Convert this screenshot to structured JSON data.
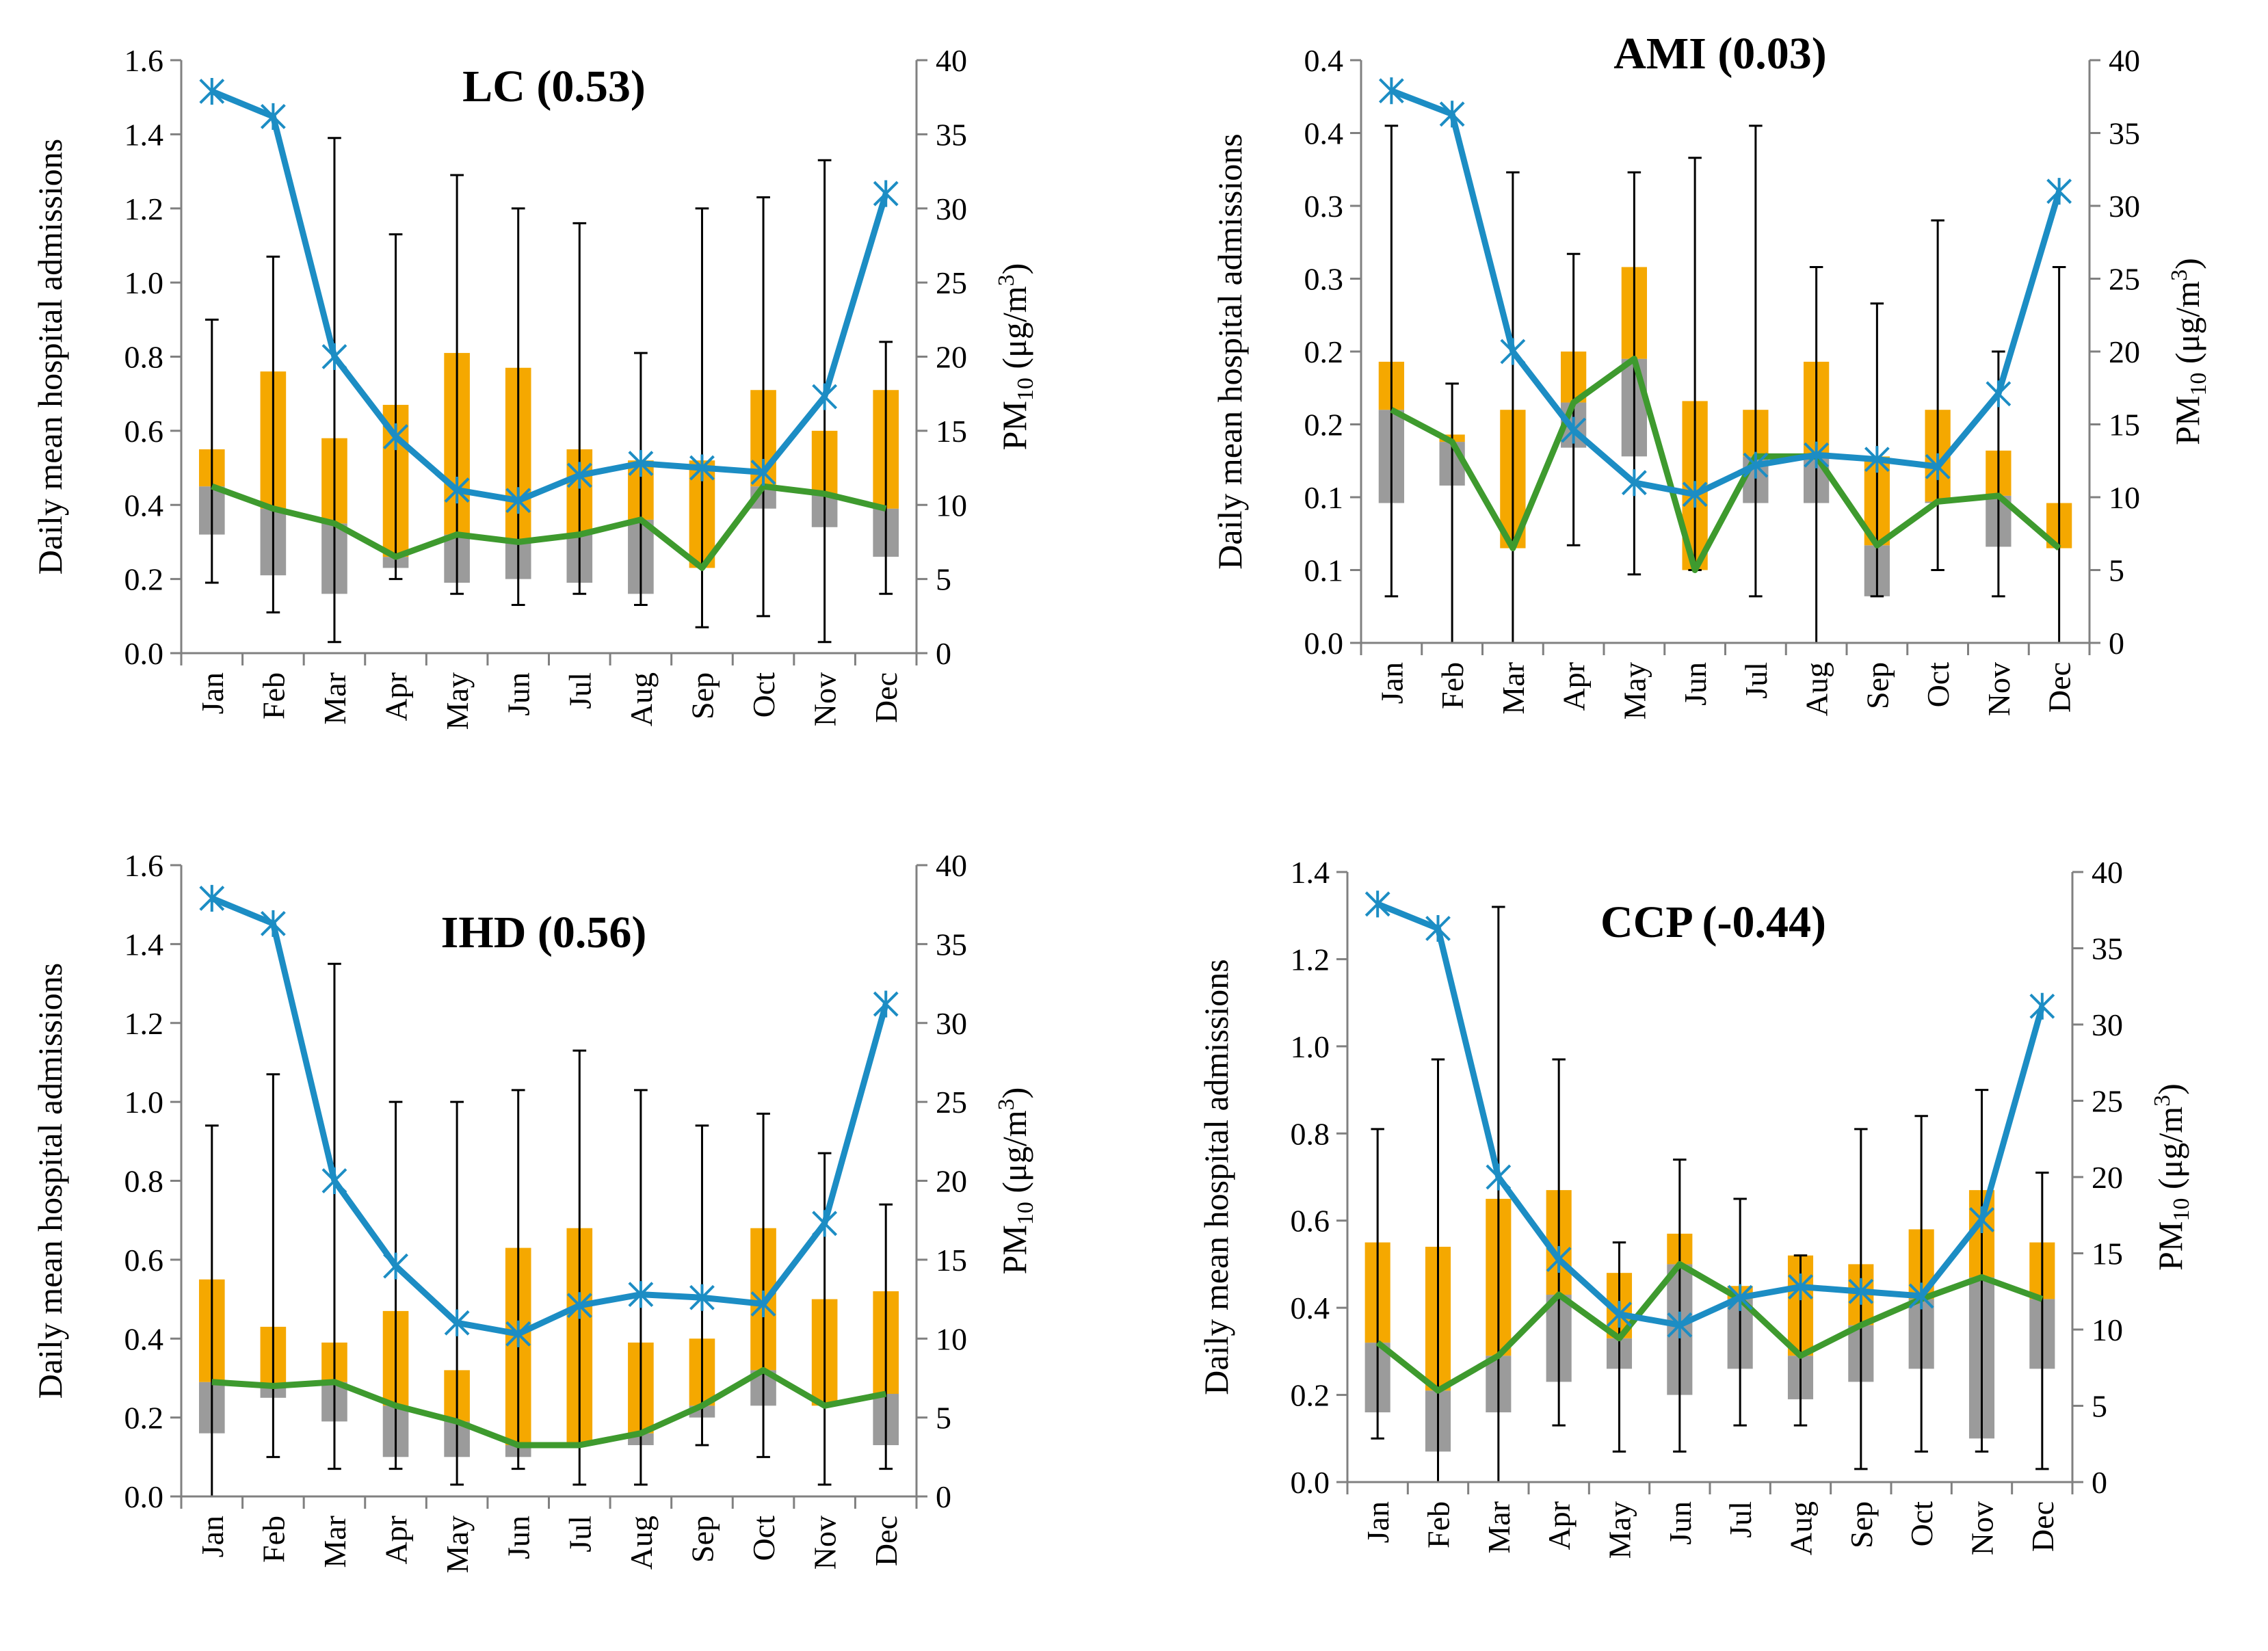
{
  "colors": {
    "pm10_line": "#1C8DC4",
    "admission_line": "#3E9A2E",
    "box_upper": "#F5A800",
    "box_lower": "#9B9B9B",
    "whisker": "#000000",
    "axis": "#808080"
  },
  "chart_data": [
    {
      "type": "boxplot-line",
      "title": "LC (0.53)",
      "ylabel": "Daily mean hospital admissions",
      "y2label": {
        "main": "PM",
        "sub": "10",
        "unit": " (μg/m",
        "sup": "3",
        "close": ")"
      },
      "ylim": [
        0,
        1.6
      ],
      "yticks": [
        "0.0",
        "0.2",
        "0.4",
        "0.6",
        "0.8",
        "1.0",
        "1.2",
        "1.4",
        "1.6"
      ],
      "y2lim": [
        0,
        40
      ],
      "y2ticks": [
        "0",
        "5",
        "10",
        "15",
        "20",
        "25",
        "30",
        "35",
        "40"
      ],
      "categories": [
        "Jan",
        "Feb",
        "Mar",
        "Apr",
        "May",
        "Jun",
        "Jul",
        "Aug",
        "Sep",
        "Oct",
        "Nov",
        "Dec"
      ],
      "whisker_low": [
        0.19,
        0.11,
        0.03,
        0.2,
        0.16,
        0.13,
        0.16,
        0.13,
        0.07,
        0.1,
        0.03,
        0.16
      ],
      "q1": [
        0.32,
        0.21,
        0.16,
        0.23,
        0.19,
        0.2,
        0.19,
        0.16,
        0.23,
        0.39,
        0.34,
        0.26
      ],
      "median": [
        0.45,
        0.39,
        0.35,
        0.26,
        0.32,
        0.3,
        0.32,
        0.36,
        0.23,
        0.45,
        0.43,
        0.39
      ],
      "q3": [
        0.55,
        0.76,
        0.58,
        0.67,
        0.81,
        0.77,
        0.55,
        0.52,
        0.52,
        0.71,
        0.6,
        0.71
      ],
      "whisker_high": [
        0.9,
        1.07,
        1.39,
        1.13,
        1.29,
        1.2,
        1.16,
        0.81,
        1.2,
        1.23,
        1.33,
        0.84
      ],
      "pm10": [
        37.9,
        36.2,
        20,
        14.6,
        11,
        10.3,
        12,
        12.8,
        12.5,
        12.2,
        17.3,
        31
      ]
    },
    {
      "type": "boxplot-line",
      "title": "AMI (0.03)",
      "ylabel": "Daily mean hospital admissions",
      "y2label": {
        "main": "PM",
        "sub": "10",
        "unit": " (μg/m",
        "sup": "3",
        "close": ")"
      },
      "ylim": [
        0,
        0.4
      ],
      "yticks": [
        "0.0",
        "0.1",
        "0.1",
        "0.2",
        "0.2",
        "0.3",
        "0.3",
        "0.4",
        "0.4"
      ],
      "y2lim": [
        0,
        40
      ],
      "y2ticks": [
        "0",
        "5",
        "10",
        "15",
        "20",
        "25",
        "30",
        "35",
        "40"
      ],
      "categories": [
        "Jan",
        "Feb",
        "Mar",
        "Apr",
        "May",
        "Jun",
        "Jul",
        "Aug",
        "Sep",
        "Oct",
        "Nov",
        "Dec"
      ],
      "whisker_low": [
        0.032,
        0,
        0,
        0.067,
        0.047,
        0.05,
        0.032,
        0,
        0.032,
        0.05,
        0.032,
        0
      ],
      "q1": [
        0.096,
        0.108,
        0.065,
        0.134,
        0.128,
        0.05,
        0.096,
        0.096,
        0.032,
        0.096,
        0.066,
        0.065
      ],
      "median": [
        0.16,
        0.138,
        0.065,
        0.165,
        0.195,
        0.05,
        0.128,
        0.128,
        0.067,
        0.097,
        0.101,
        0.065
      ],
      "q3": [
        0.193,
        0.143,
        0.16,
        0.2,
        0.258,
        0.166,
        0.16,
        0.193,
        0.128,
        0.16,
        0.132,
        0.096
      ],
      "whisker_high": [
        0.355,
        0.178,
        0.323,
        0.267,
        0.323,
        0.333,
        0.355,
        0.258,
        0.233,
        0.29,
        0.2,
        0.258
      ],
      "pm10": [
        37.9,
        36.3,
        20,
        14.6,
        11,
        10.2,
        12.2,
        12.9,
        12.6,
        12.1,
        17.1,
        31
      ]
    },
    {
      "type": "boxplot-line",
      "title": "IHD (0.56)",
      "ylabel": "Daily mean hospital admissions",
      "y2label": {
        "main": "PM",
        "sub": "10",
        "unit": " (μg/m",
        "sup": "3",
        "close": ")"
      },
      "ylim": [
        0,
        1.6
      ],
      "yticks": [
        "0.0",
        "0.2",
        "0.4",
        "0.6",
        "0.8",
        "1.0",
        "1.2",
        "1.4",
        "1.6"
      ],
      "y2lim": [
        0,
        40
      ],
      "y2ticks": [
        "0",
        "5",
        "10",
        "15",
        "20",
        "25",
        "30",
        "35",
        "40"
      ],
      "categories": [
        "Jan",
        "Feb",
        "Mar",
        "Apr",
        "May",
        "Jun",
        "Jul",
        "Aug",
        "Sep",
        "Oct",
        "Nov",
        "Dec"
      ],
      "whisker_low": [
        0,
        0.1,
        0.07,
        0.07,
        0.03,
        0.07,
        0.03,
        0.03,
        0.13,
        0.1,
        0.03,
        0.07
      ],
      "q1": [
        0.16,
        0.25,
        0.19,
        0.1,
        0.1,
        0.1,
        0.13,
        0.13,
        0.2,
        0.23,
        0.23,
        0.13
      ],
      "median": [
        0.29,
        0.28,
        0.29,
        0.23,
        0.19,
        0.13,
        0.13,
        0.16,
        0.23,
        0.32,
        0.23,
        0.26
      ],
      "q3": [
        0.55,
        0.43,
        0.39,
        0.47,
        0.32,
        0.63,
        0.68,
        0.39,
        0.4,
        0.68,
        0.5,
        0.52
      ],
      "whisker_high": [
        0.94,
        1.07,
        1.35,
        1.0,
        1.0,
        1.03,
        1.13,
        1.03,
        0.94,
        0.97,
        0.87,
        0.74
      ],
      "pm10": [
        37.9,
        36.3,
        20,
        14.6,
        11,
        10.3,
        12.1,
        12.8,
        12.6,
        12.2,
        17.3,
        31.2
      ]
    },
    {
      "type": "boxplot-line",
      "title": "CCP (-0.44)",
      "ylabel": "Daily mean hospital admissions",
      "y2label": {
        "main": "PM",
        "sub": "10",
        "unit": " (μg/m",
        "sup": "3",
        "close": ")"
      },
      "ylim": [
        0,
        1.4
      ],
      "yticks": [
        "0.0",
        "0.2",
        "0.4",
        "0.6",
        "0.8",
        "1.0",
        "1.2",
        "1.4"
      ],
      "y2lim": [
        0,
        40
      ],
      "y2ticks": [
        "0",
        "5",
        "10",
        "15",
        "20",
        "25",
        "30",
        "35",
        "40"
      ],
      "categories": [
        "Jan",
        "Feb",
        "Mar",
        "Apr",
        "May",
        "Jun",
        "Jul",
        "Aug",
        "Sep",
        "Oct",
        "Nov",
        "Dec"
      ],
      "whisker_low": [
        0.1,
        0,
        0,
        0.13,
        0.07,
        0.07,
        0.13,
        0.13,
        0.03,
        0.07,
        0.07,
        0.03
      ],
      "q1": [
        0.16,
        0.07,
        0.16,
        0.23,
        0.26,
        0.2,
        0.26,
        0.19,
        0.23,
        0.26,
        0.1,
        0.26
      ],
      "median": [
        0.32,
        0.21,
        0.29,
        0.43,
        0.33,
        0.5,
        0.42,
        0.29,
        0.36,
        0.42,
        0.47,
        0.42
      ],
      "q3": [
        0.55,
        0.54,
        0.65,
        0.67,
        0.48,
        0.57,
        0.45,
        0.52,
        0.5,
        0.58,
        0.67,
        0.55
      ],
      "whisker_high": [
        0.81,
        0.97,
        1.32,
        0.97,
        0.55,
        0.74,
        0.65,
        0.52,
        0.81,
        0.84,
        0.9,
        0.71
      ],
      "pm10": [
        37.9,
        36.3,
        20,
        14.6,
        11,
        10.3,
        12.1,
        12.8,
        12.5,
        12.2,
        17.2,
        31.2
      ]
    }
  ]
}
